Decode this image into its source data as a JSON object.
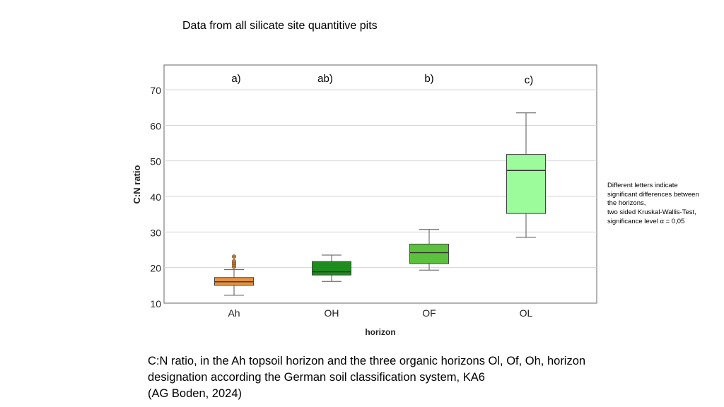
{
  "slide": {
    "title": "Data from all silicate site quantitive pits",
    "note_lines": [
      "Different letters indicate",
      "significant differences between",
      "the horizons,",
      "two sided Kruskal-Wallis-Test,",
      "significance level α = 0,05"
    ],
    "caption_lines": [
      "C:N ratio, in the Ah topsoil horizon and the three organic horizons Ol, Of, Oh, horizon",
      "designation according the German soil classification system, KA6",
      "(AG Boden, 2024)"
    ]
  },
  "chart_data": {
    "type": "box",
    "xlabel": "horizon",
    "ylabel": "C:N ratio",
    "ylim": [
      10,
      73
    ],
    "yticks": [
      10,
      20,
      30,
      40,
      50,
      60,
      70
    ],
    "grid": true,
    "categories": [
      "Ah",
      "OH",
      "OF",
      "OL"
    ],
    "significance_letters": [
      "a)",
      "ab)",
      "b)",
      "c)"
    ],
    "colors": [
      "#e8913e",
      "#1e8c1e",
      "#5cc23e",
      "#9cfc9c"
    ],
    "boxes": [
      {
        "category": "Ah",
        "min": 12.2,
        "q1": 15.0,
        "median": 16.0,
        "q3": 17.2,
        "max": 19.4,
        "outliers": [
          20.2,
          20.8,
          21.3,
          21.8,
          23.1
        ]
      },
      {
        "category": "OH",
        "min": 16.1,
        "q1": 17.9,
        "median": 18.8,
        "q3": 21.7,
        "max": 23.5,
        "outliers": []
      },
      {
        "category": "OF",
        "min": 19.3,
        "q1": 21.1,
        "median": 24.2,
        "q3": 26.6,
        "max": 30.7,
        "outliers": []
      },
      {
        "category": "OL",
        "min": 28.5,
        "q1": 35.2,
        "median": 47.3,
        "q3": 51.8,
        "max": 63.5,
        "outliers": []
      }
    ]
  }
}
